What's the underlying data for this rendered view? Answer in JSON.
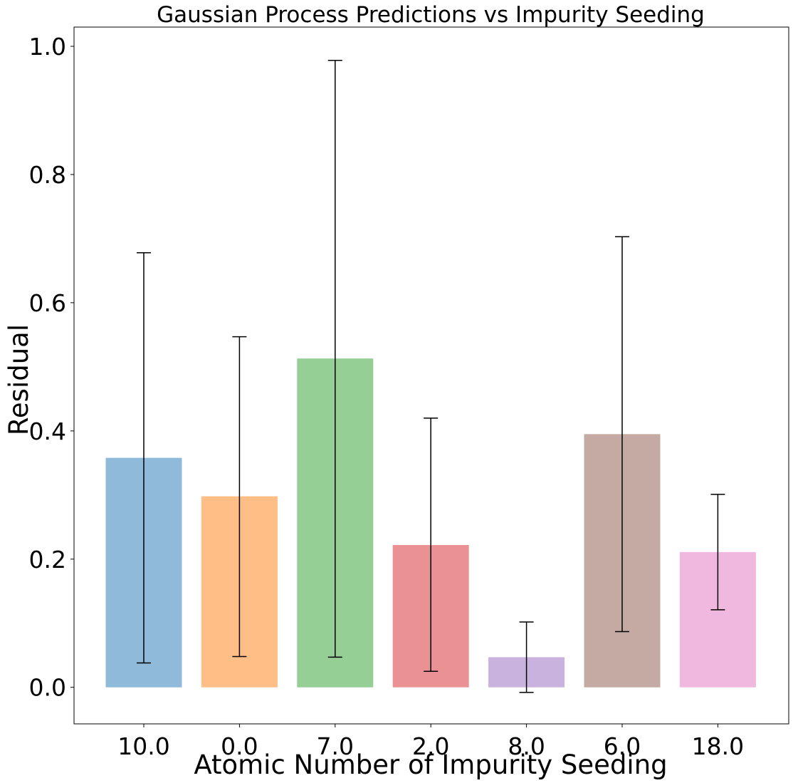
{
  "chart_data": {
    "type": "bar",
    "title": "Gaussian Process Predictions vs Impurity Seeding",
    "xlabel": "Atomic Number of Impurity Seeding",
    "ylabel": "Residual",
    "categories": [
      "10.0",
      "0.0",
      "7.0",
      "2.0",
      "8.0",
      "6.0",
      "18.0"
    ],
    "values": [
      0.358,
      0.298,
      0.513,
      0.222,
      0.047,
      0.395,
      0.211
    ],
    "error_bars": [
      {
        "low": 0.038,
        "high": 0.678
      },
      {
        "low": 0.048,
        "high": 0.547
      },
      {
        "low": 0.047,
        "high": 0.978
      },
      {
        "low": 0.025,
        "high": 0.42
      },
      {
        "low": -0.008,
        "high": 0.102
      },
      {
        "low": 0.087,
        "high": 0.703
      },
      {
        "low": 0.121,
        "high": 0.301
      }
    ],
    "colors": [
      "#8fbad9",
      "#ffbe86",
      "#96cf95",
      "#ea9293",
      "#c9b3de",
      "#c5aaa3",
      "#f1b8df"
    ],
    "ylim": [
      -0.057,
      1.03
    ],
    "yticks": [
      0.0,
      0.2,
      0.4,
      0.6,
      0.8,
      1.0
    ],
    "ytick_labels": [
      "0.0",
      "0.2",
      "0.4",
      "0.6",
      "0.8",
      "1.0"
    ],
    "grid": false,
    "legend": "none"
  }
}
